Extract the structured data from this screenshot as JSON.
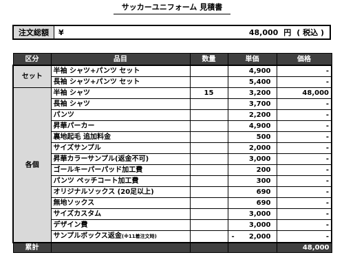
{
  "title": "サッカーユニフォーム 見積書",
  "total": {
    "label": "注文総額",
    "yen": "¥",
    "amount": "48,000",
    "unit": "円",
    "tax": "( 税込 )"
  },
  "table": {
    "headers": {
      "category": "区分",
      "item": "品目",
      "qty": "数量",
      "unit_price": "単価",
      "price": "価格"
    },
    "sets": {
      "label": "セット",
      "rows": [
        {
          "item": "半袖 シャツ+パンツ セット",
          "qty": "",
          "unit_price": "4,900",
          "price": "-"
        },
        {
          "item": "長袖 シャツ+パンツ セット",
          "qty": "",
          "unit_price": "5,400",
          "price": "-"
        }
      ]
    },
    "items": {
      "label": "各個",
      "rows": [
        {
          "item": "半袖 シャツ",
          "qty": "15",
          "unit_price": "3,200",
          "price": "48,000"
        },
        {
          "item": "長袖 シャツ",
          "qty": "",
          "unit_price": "3,700",
          "price": "-"
        },
        {
          "item": "パンツ",
          "qty": "",
          "unit_price": "2,200",
          "price": "-"
        },
        {
          "item": "昇華パーカー",
          "qty": "",
          "unit_price": "4,900",
          "price": "-"
        },
        {
          "item": "裏地起毛 追加料金",
          "qty": "",
          "unit_price": "500",
          "price": "-"
        },
        {
          "item": "サイズサンプル",
          "qty": "",
          "unit_price": "2,000",
          "price": "-"
        },
        {
          "item": "昇華カラーサンプル(返金不可)",
          "qty": "",
          "unit_price": "3,000",
          "price": "-"
        },
        {
          "item": "ゴールキーパーパッド加工費",
          "qty": "",
          "unit_price": "200",
          "price": "-"
        },
        {
          "item": "パンツ ペッチコート加工費",
          "qty": "",
          "unit_price": "300",
          "price": "-"
        },
        {
          "item": "オリジナルソックス (20足以上)",
          "qty": "",
          "unit_price": "690",
          "price": "-"
        },
        {
          "item": "無地ソックス",
          "qty": "",
          "unit_price": "690",
          "price": "-"
        },
        {
          "item": "サイズカスタム",
          "qty": "",
          "unit_price": "3,000",
          "price": "-"
        },
        {
          "item": "デザイン費",
          "qty": "",
          "unit_price": "3,000",
          "price": "-"
        },
        {
          "item": "サンプルボックス返金",
          "note": "(※11着注文時)",
          "qty": "",
          "unit_price_sign": "-",
          "unit_price": "2,000",
          "price": "-"
        }
      ]
    },
    "sum": {
      "label": "累計",
      "price": "48,000"
    }
  }
}
